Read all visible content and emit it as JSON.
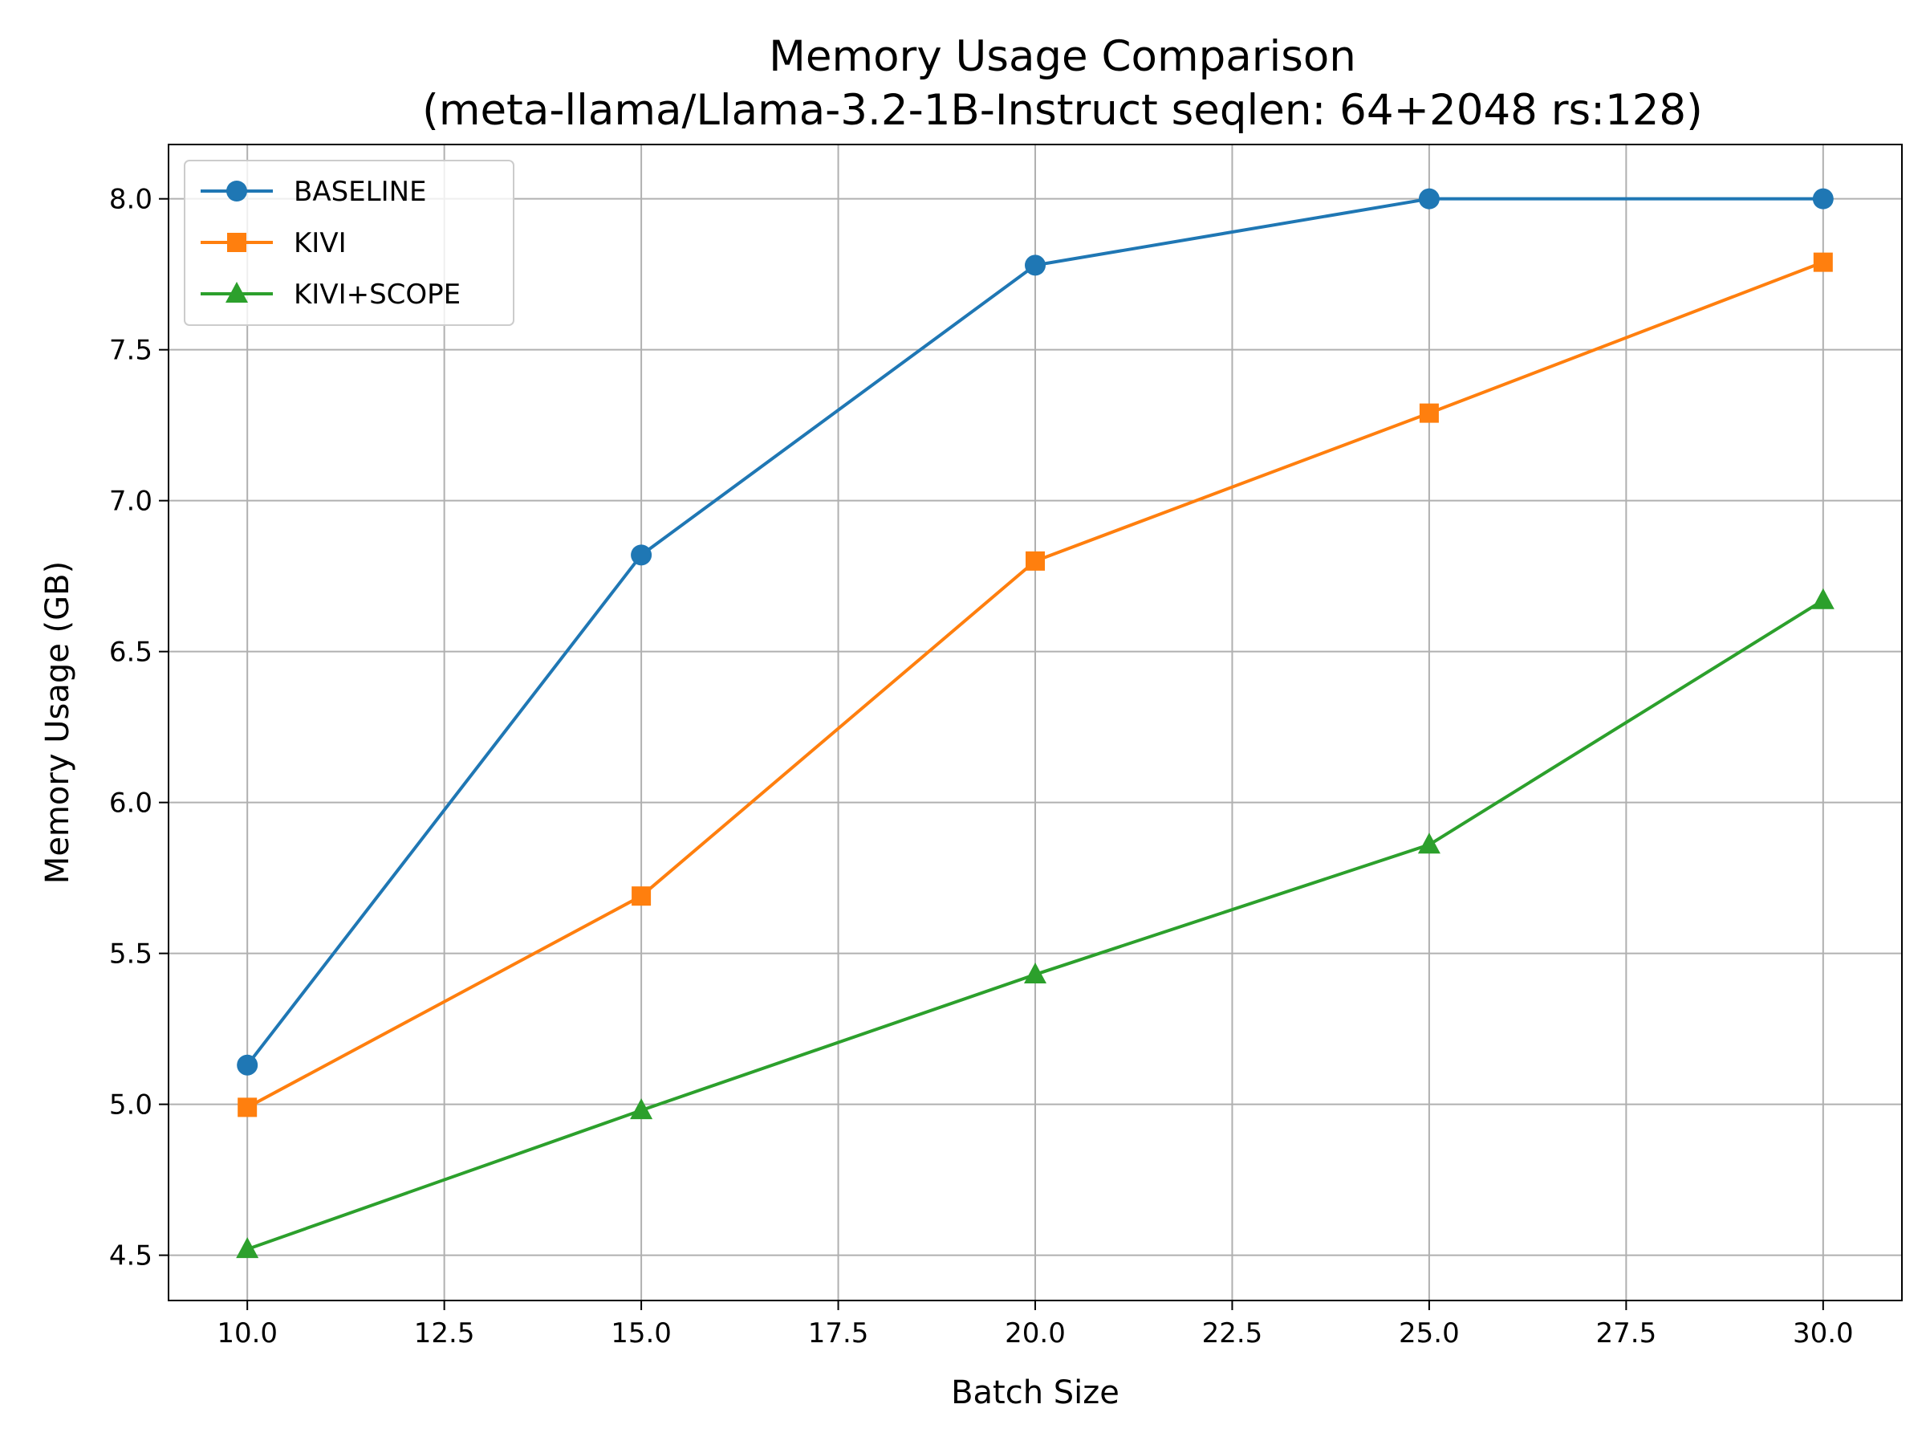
{
  "chart_data": {
    "type": "line",
    "title_line1": "Memory Usage Comparison",
    "title_line2": "(meta-llama/Llama-3.2-1B-Instruct seqlen: 64+2048 rs:128)",
    "xlabel": "Batch Size",
    "ylabel": "Memory Usage (GB)",
    "x": [
      10,
      15,
      20,
      25,
      30
    ],
    "xlim": [
      9,
      31
    ],
    "ylim": [
      4.35,
      8.18
    ],
    "xticks": [
      "10.0",
      "12.5",
      "15.0",
      "17.5",
      "20.0",
      "22.5",
      "25.0",
      "27.5",
      "30.0"
    ],
    "yticks": [
      "4.5",
      "5.0",
      "5.5",
      "6.0",
      "6.5",
      "7.0",
      "7.5",
      "8.0"
    ],
    "grid": true,
    "legend_position": "top-left",
    "series": [
      {
        "name": "BASELINE",
        "color": "#1f77b4",
        "marker": "circle",
        "values": [
          5.13,
          6.82,
          7.78,
          8.0,
          8.0
        ]
      },
      {
        "name": "KIVI",
        "color": "#ff7f0e",
        "marker": "square",
        "values": [
          4.99,
          5.69,
          6.8,
          7.29,
          7.79
        ]
      },
      {
        "name": "KIVI+SCOPE",
        "color": "#2ca02c",
        "marker": "triangle",
        "values": [
          4.52,
          4.98,
          5.43,
          5.86,
          6.67
        ]
      }
    ]
  }
}
